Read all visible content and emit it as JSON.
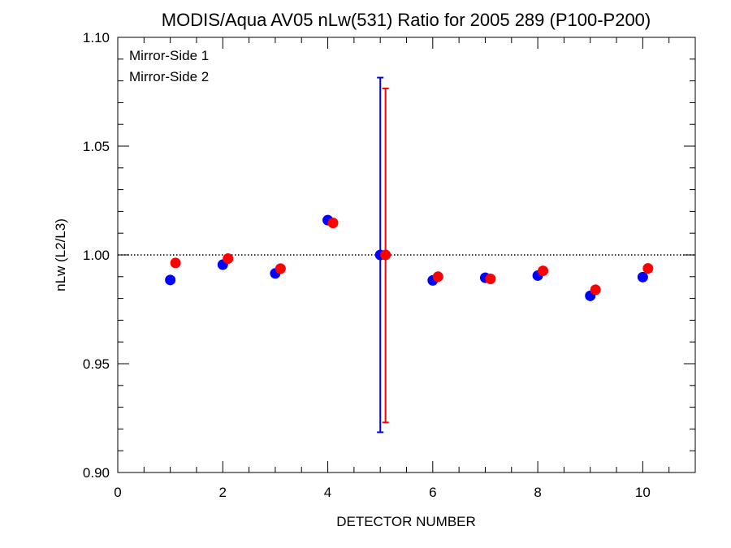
{
  "chart_data": {
    "type": "scatter",
    "title": "MODIS/Aqua AV05 nLw(531) Ratio for 2005 289 (P100-P200)",
    "xlabel": "DETECTOR NUMBER",
    "ylabel": "nLw (L2/L3)",
    "xlim": [
      0,
      11
    ],
    "ylim": [
      0.9,
      1.1
    ],
    "x_ticks": [
      "0",
      "2",
      "4",
      "6",
      "8",
      "10"
    ],
    "y_ticks": [
      "0.90",
      "0.95",
      "1.00",
      "1.05",
      "1.10"
    ],
    "reference_line": {
      "y": 1.0,
      "style": "dotted",
      "color": "#000000"
    },
    "legend_position": "top-left",
    "grid": false,
    "series": [
      {
        "name": "Mirror-Side 1",
        "color": "#0000ff",
        "x": [
          1,
          2,
          3,
          4,
          5,
          6,
          7,
          8,
          9,
          10
        ],
        "y": [
          0.9885,
          0.9955,
          0.9915,
          1.016,
          1.0,
          0.9883,
          0.9895,
          0.9905,
          0.9812,
          0.9898
        ],
        "error_bar": {
          "x": 5,
          "low": 0.9185,
          "high": 1.0815
        }
      },
      {
        "name": "Mirror-Side 2",
        "color": "#ff0000",
        "x": [
          1.1,
          2.1,
          3.1,
          4.1,
          5.1,
          6.1,
          7.1,
          8.1,
          9.1,
          10.1
        ],
        "y": [
          0.9963,
          0.9983,
          0.9937,
          1.0147,
          1.0,
          0.99,
          0.989,
          0.9927,
          0.984,
          0.9938
        ],
        "error_bar": {
          "x": 5.1,
          "low": 0.923,
          "high": 1.0765
        }
      }
    ]
  }
}
